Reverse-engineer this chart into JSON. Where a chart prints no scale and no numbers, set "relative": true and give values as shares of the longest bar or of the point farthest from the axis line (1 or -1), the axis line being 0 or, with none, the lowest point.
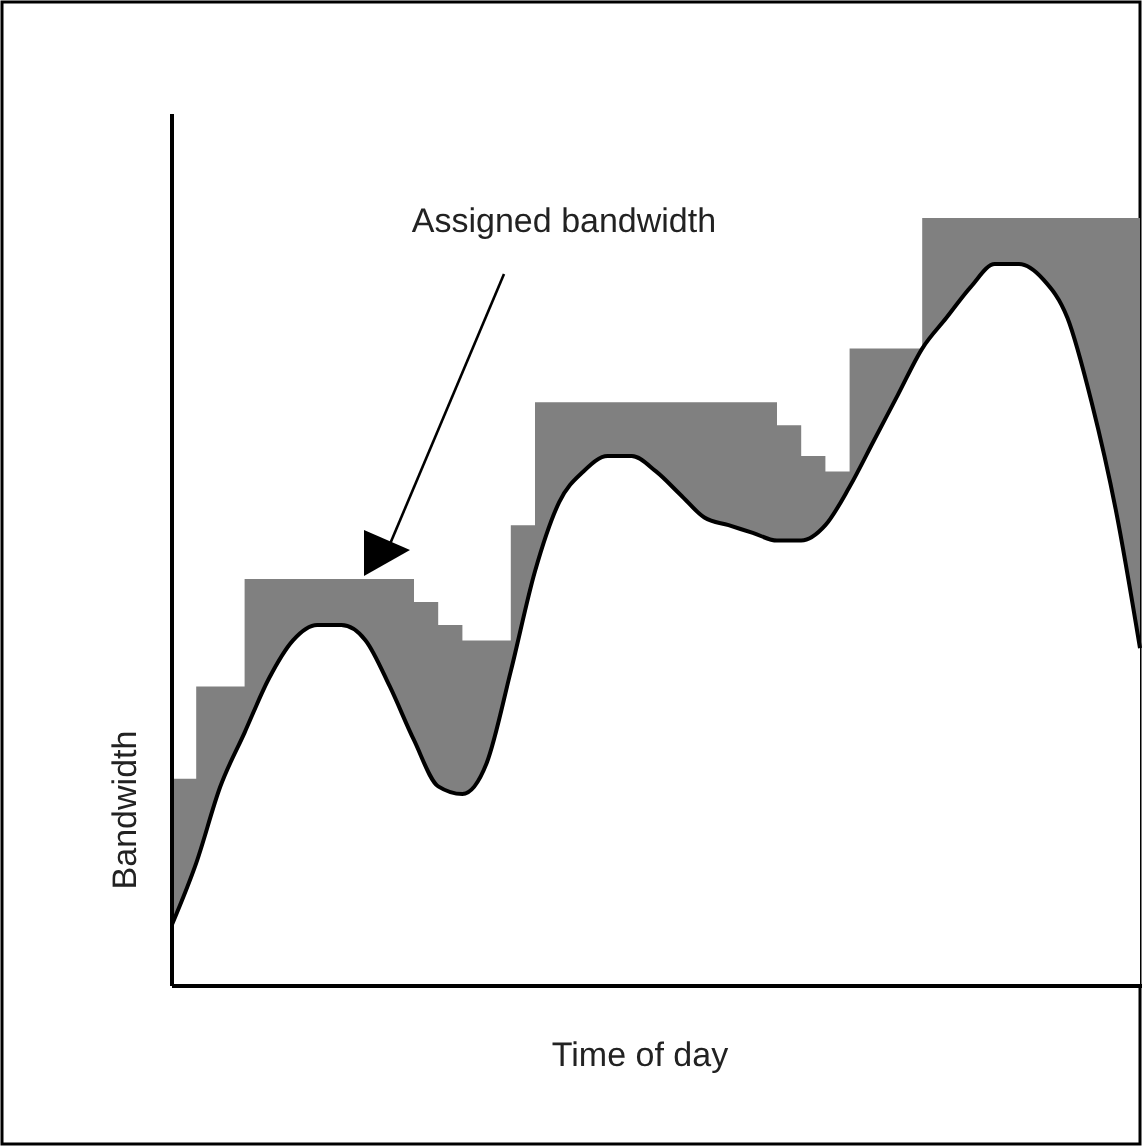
{
  "chart_data": {
    "type": "step",
    "relative": true,
    "xlabel": "Time of day",
    "ylabel": "Bandwidth",
    "annotations": [
      "Assigned bandwidth"
    ],
    "categories": [
      null,
      null,
      null,
      null,
      null,
      null,
      null,
      null,
      null,
      null,
      null,
      null,
      null,
      null,
      null,
      null,
      null,
      null,
      null,
      null,
      null,
      null,
      null,
      null,
      null,
      null,
      null,
      null,
      null,
      null,
      null,
      null,
      null,
      null,
      null,
      null,
      null,
      null,
      null,
      null,
      null
    ],
    "series": [
      {
        "type": "area",
        "color": "#808080",
        "values": [
          0.27,
          0.39,
          0.39,
          0.53,
          0.53,
          0.53,
          0.53,
          0.53,
          0.53,
          0.53,
          0.5,
          0.47,
          0.45,
          0.45,
          0.6,
          0.76,
          0.76,
          0.76,
          0.76,
          0.76,
          0.76,
          0.76,
          0.76,
          0.76,
          0.76,
          0.73,
          0.69,
          0.67,
          0.83,
          0.83,
          0.83,
          1,
          1,
          1,
          1,
          1,
          1,
          1,
          1,
          1,
          1
        ]
      },
      {
        "type": "area",
        "color": "#ffffff",
        "values": [
          0.08,
          0.16,
          0.26,
          0.33,
          0.4,
          0.45,
          0.47,
          0.47,
          0.45,
          0.39,
          0.32,
          0.26,
          0.25,
          0.29,
          0.41,
          0.54,
          0.63,
          0.67,
          0.69,
          0.69,
          0.67,
          0.64,
          0.61,
          0.6,
          0.59,
          0.58,
          0.58,
          0.6,
          0.65,
          0.71,
          0.77,
          0.83,
          0.87,
          0.91,
          0.94,
          0.94,
          0.92,
          0.87,
          0.76,
          0.62,
          0.44
        ]
      }
    ]
  }
}
